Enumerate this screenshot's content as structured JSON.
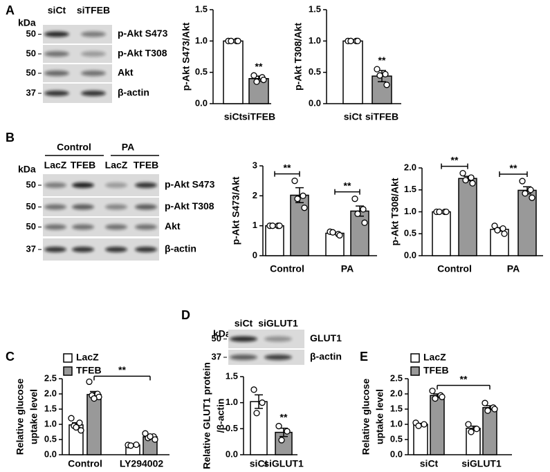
{
  "panels": [
    "A",
    "B",
    "C",
    "D",
    "E"
  ],
  "blots": [
    {
      "kda_title": "kDa",
      "lanes": [
        "siCt",
        "siTFEB"
      ],
      "rows": [
        {
          "kda": "50",
          "label": "p-Akt S473"
        },
        {
          "kda": "50",
          "label": "p-Akt T308"
        },
        {
          "kda": "50",
          "label": "Akt"
        },
        {
          "kda": "37",
          "label": "β-actin"
        }
      ]
    },
    {
      "kda_title": "kDa",
      "groups": [
        "Control",
        "PA"
      ],
      "lanes": [
        "LacZ",
        "TFEB",
        "LacZ",
        "TFEB"
      ],
      "rows": [
        {
          "kda": "50",
          "label": "p-Akt S473"
        },
        {
          "kda": "50",
          "label": "p-Akt T308"
        },
        {
          "kda": "50",
          "label": "Akt"
        },
        {
          "kda": "37",
          "label": "β-actin"
        }
      ]
    },
    {
      "kda_title": "kDa",
      "lanes": [
        "siCt",
        "siGLUT1"
      ],
      "rows": [
        {
          "kda": "50",
          "label": "GLUT1"
        },
        {
          "kda": "37",
          "label": "β-actin"
        }
      ]
    }
  ],
  "chart_data": [
    {
      "type": "bar",
      "ylabel": "p-Akt S473/Akt",
      "categories": [
        "siCt",
        "siTFEB"
      ],
      "values": [
        1.0,
        0.4
      ],
      "errors": [
        0,
        0.04
      ],
      "points": [
        [
          1,
          1,
          1,
          1
        ],
        [
          0.45,
          0.42,
          0.35,
          0.38
        ]
      ],
      "colors": [
        "#ffffff",
        "#999999"
      ],
      "ylim": [
        0,
        1.5
      ],
      "yticks": [
        {
          "value": 0,
          "label": "0.0"
        },
        0.5,
        {
          "value": 1,
          "label": "1.0"
        },
        1.5
      ],
      "annotations": [
        "**"
      ]
    },
    {
      "type": "bar",
      "ylabel": "p-Akt T308/Akt",
      "categories": [
        "siCt",
        "siTFEB"
      ],
      "values": [
        1.0,
        0.44
      ],
      "errors": [
        0,
        0.09
      ],
      "points": [
        [
          1,
          1,
          1,
          1
        ],
        [
          0.55,
          0.47,
          0.45,
          0.3
        ]
      ],
      "colors": [
        "#ffffff",
        "#999999"
      ],
      "ylim": [
        0,
        1.5
      ],
      "yticks": [
        {
          "value": 0,
          "label": "0.0"
        },
        0.5,
        {
          "value": 1,
          "label": "1.0"
        },
        1.5
      ],
      "annotations": [
        "**"
      ]
    },
    {
      "type": "bar",
      "ylabel": "p-Akt S473/Akt",
      "categories": [
        "Control",
        "PA"
      ],
      "series": [
        {
          "color": "#ffffff",
          "values": [
            1.0,
            0.75
          ],
          "errors": [
            0,
            0.03
          ],
          "points": [
            [
              1,
              1,
              1,
              1
            ],
            [
              0.8,
              0.72,
              0.78,
              0.68
            ]
          ]
        },
        {
          "color": "#999999",
          "values": [
            2.02,
            1.49
          ],
          "errors": [
            0.25,
            0.17
          ],
          "points": [
            [
              2.5,
              2.0,
              1.9,
              1.6
            ],
            [
              1.9,
              1.55,
              1.4,
              1.1
            ]
          ]
        }
      ],
      "ylim": [
        0,
        3
      ],
      "yticks": [
        0,
        1,
        2,
        3
      ],
      "annotations": [
        "**",
        "**"
      ]
    },
    {
      "type": "bar",
      "ylabel": "p-Akt T308/Akt",
      "categories": [
        "Control",
        "PA"
      ],
      "series": [
        {
          "color": "#ffffff",
          "values": [
            1.0,
            0.6
          ],
          "errors": [
            0,
            0.04
          ],
          "points": [
            [
              1,
              1,
              1,
              1
            ],
            [
              0.68,
              0.62,
              0.58,
              0.5
            ]
          ]
        },
        {
          "color": "#999999",
          "values": [
            1.76,
            1.49
          ],
          "errors": [
            0.05,
            0.08
          ],
          "points": [
            [
              1.88,
              1.78,
              1.72,
              1.65
            ],
            [
              1.7,
              1.5,
              1.42,
              1.32
            ]
          ]
        }
      ],
      "ylim": [
        0,
        2
      ],
      "yticks": [
        {
          "value": 0,
          "label": "0.0"
        },
        0.5,
        {
          "value": 1,
          "label": "1.0"
        },
        1.5,
        {
          "value": 2,
          "label": "2.0"
        }
      ],
      "annotations": [
        "**",
        "**"
      ]
    },
    {
      "type": "bar",
      "ylabel": [
        "Relative glucose",
        "uptake level"
      ],
      "categories": [
        "Control",
        "LY294002"
      ],
      "legend": "above",
      "series": [
        {
          "name": "LacZ",
          "color": "#ffffff",
          "values": [
            0.98,
            0.32
          ],
          "errors": [
            0.07,
            0.01
          ],
          "points": [
            [
              1.2,
              1.05,
              0.95,
              0.8,
              0.9
            ],
            [
              0.32,
              0.33,
              0.3
            ]
          ]
        },
        {
          "name": "TFEB",
          "color": "#999999",
          "values": [
            1.98,
            0.59
          ],
          "errors": [
            0.1,
            0.03
          ],
          "points": [
            [
              2.4,
              2.0,
              1.95,
              1.9,
              1.85
            ],
            [
              0.7,
              0.6,
              0.55,
              0.5,
              0.6
            ]
          ]
        }
      ],
      "ylim": [
        0,
        2.5
      ],
      "yticks": [
        {
          "value": 0,
          "label": "0.0"
        },
        0.5,
        {
          "value": 1,
          "label": "1.0"
        },
        1.5,
        {
          "value": 2,
          "label": "2.0"
        },
        2.5
      ],
      "annotations": [
        "**"
      ]
    },
    {
      "type": "bar",
      "ylabel": [
        "Relative GLUT1 protein",
        "/β-actin"
      ],
      "categories": [
        "siCt",
        "siGLUT1"
      ],
      "values": [
        1.02,
        0.43
      ],
      "errors": [
        0.13,
        0.08
      ],
      "points": [
        [
          1.25,
          1.0,
          0.8
        ],
        [
          0.55,
          0.45,
          0.28
        ]
      ],
      "colors": [
        "#ffffff",
        "#999999"
      ],
      "ylim": [
        0,
        1.5
      ],
      "yticks": [
        {
          "value": 0,
          "label": "0.0"
        },
        0.5,
        {
          "value": 1,
          "label": "1.0"
        },
        1.5
      ],
      "annotations": [
        "**"
      ]
    },
    {
      "type": "bar",
      "ylabel": [
        "Relative glucose",
        "uptake level"
      ],
      "categories": [
        "siCt",
        "siGLUT1"
      ],
      "legend": "above",
      "series": [
        {
          "name": "LacZ",
          "color": "#ffffff",
          "values": [
            1.0,
            0.87
          ],
          "errors": [
            0.03,
            0.07
          ],
          "points": [
            [
              1.05,
              1.0,
              0.95
            ],
            [
              1.0,
              0.85,
              0.75
            ]
          ]
        },
        {
          "name": "TFEB",
          "color": "#999999",
          "values": [
            1.95,
            1.55
          ],
          "errors": [
            0.05,
            0.06
          ],
          "points": [
            [
              2.1,
              1.95,
              1.85,
              1.9
            ],
            [
              1.7,
              1.55,
              1.45,
              1.5
            ]
          ]
        }
      ],
      "ylim": [
        0,
        2.5
      ],
      "yticks": [
        {
          "value": 0,
          "label": "0.0"
        },
        0.5,
        {
          "value": 1,
          "label": "1.0"
        },
        1.5,
        {
          "value": 2,
          "label": "2.0"
        },
        2.5
      ],
      "annotations": [
        "**"
      ]
    }
  ]
}
